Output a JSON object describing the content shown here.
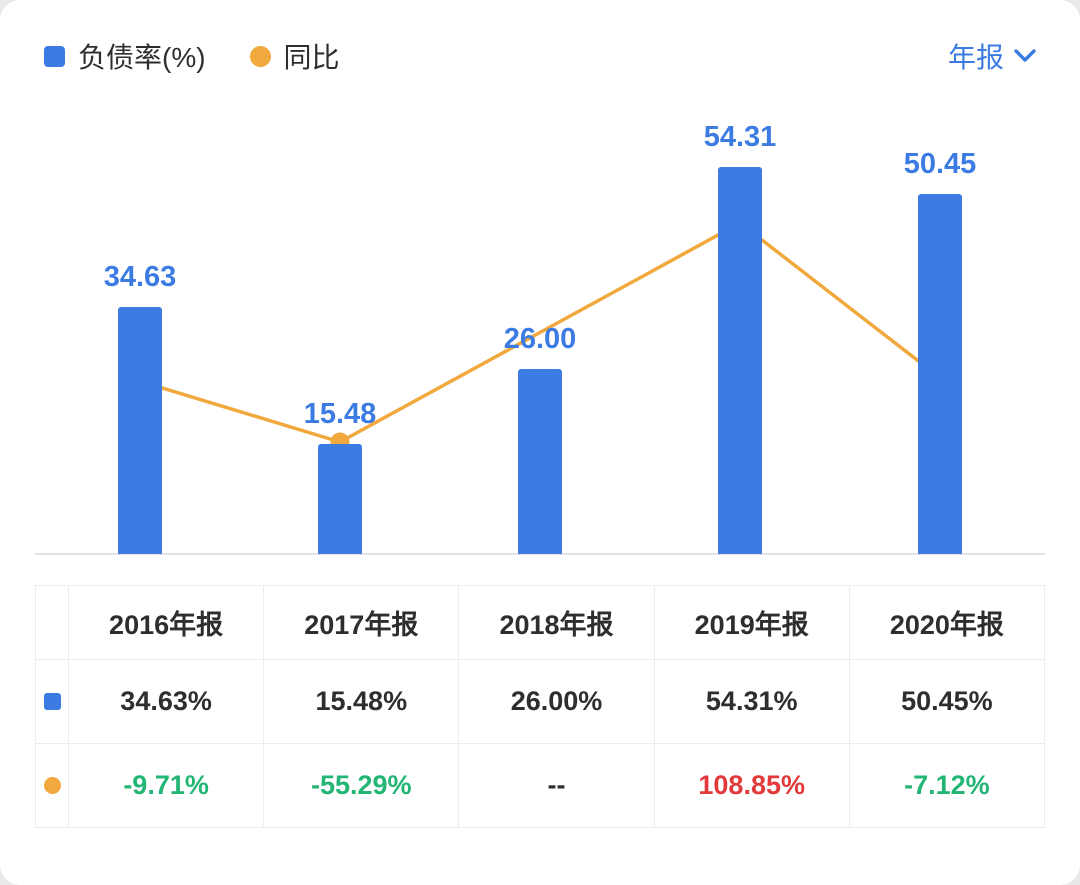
{
  "legend": {
    "bar_label": "负债率(%)",
    "line_label": "同比"
  },
  "period_selector": {
    "label": "年报"
  },
  "colors": {
    "bar": "#3c7ce2",
    "line": "#f1a83d",
    "green": "#22b573",
    "red": "#e23a3a",
    "text": "#2e2e2e",
    "border": "#ececec",
    "axis": "#e3e3e3"
  },
  "chart_data": {
    "type": "bar",
    "title": "",
    "categories": [
      "2016年报",
      "2017年报",
      "2018年报",
      "2019年报",
      "2020年报"
    ],
    "series": [
      {
        "name": "负债率(%)",
        "type": "bar",
        "values": [
          34.63,
          15.48,
          26.0,
          54.31,
          50.45
        ],
        "labels": [
          "34.63",
          "15.48",
          "26.00",
          "54.31",
          "50.45"
        ]
      },
      {
        "name": "同比",
        "type": "line",
        "values": [
          -9.71,
          -55.29,
          null,
          108.85,
          -7.12
        ],
        "labels": [
          "-9.71%",
          "-55.29%",
          "--",
          "108.85%",
          "-7.12%"
        ]
      }
    ],
    "bar_axis_range": [
      0,
      63.8
    ],
    "line_axis_range": [
      -140,
      201
    ],
    "grid": false,
    "legend_position": "top-left"
  },
  "table": {
    "headers": [
      "2016年报",
      "2017年报",
      "2018年报",
      "2019年报",
      "2020年报"
    ],
    "rows": [
      {
        "icon": "bar-series",
        "values": [
          "34.63%",
          "15.48%",
          "26.00%",
          "54.31%",
          "50.45%"
        ],
        "colors": [
          "default",
          "default",
          "default",
          "default",
          "default"
        ]
      },
      {
        "icon": "line-series",
        "values": [
          "-9.71%",
          "-55.29%",
          "--",
          "108.85%",
          "-7.12%"
        ],
        "colors": [
          "green",
          "green",
          "default",
          "red",
          "green"
        ]
      }
    ]
  }
}
